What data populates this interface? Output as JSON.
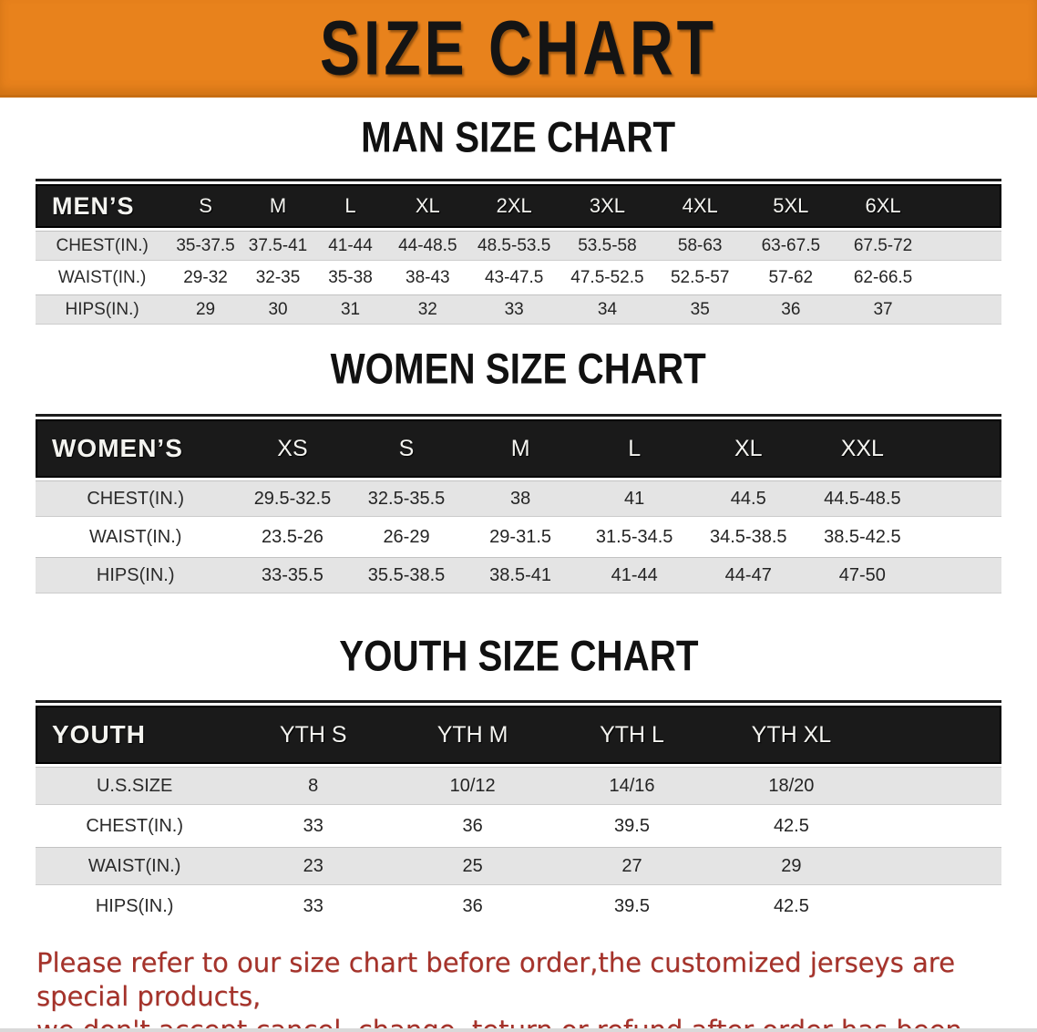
{
  "banner": {
    "title": "SIZE CHART"
  },
  "sections": {
    "men": {
      "title": "MAN SIZE CHART",
      "table": {
        "corner": "MEN’S",
        "columns": [
          "S",
          "M",
          "L",
          "XL",
          "2XL",
          "3XL",
          "4XL",
          "5XL",
          "6XL"
        ],
        "rows": [
          {
            "label": "CHEST(IN.)",
            "values": [
              "35-37.5",
              "37.5-41",
              "41-44",
              "44-48.5",
              "48.5-53.5",
              "53.5-58",
              "58-63",
              "63-67.5",
              "67.5-72"
            ]
          },
          {
            "label": "WAIST(IN.)",
            "values": [
              "29-32",
              "32-35",
              "35-38",
              "38-43",
              "43-47.5",
              "47.5-52.5",
              "52.5-57",
              "57-62",
              "62-66.5"
            ]
          },
          {
            "label": "HIPS(IN.)",
            "values": [
              "29",
              "30",
              "31",
              "32",
              "33",
              "34",
              "35",
              "36",
              "37"
            ]
          }
        ]
      }
    },
    "women": {
      "title": "WOMEN SIZE CHART",
      "table": {
        "corner": "WOMEN’S",
        "columns": [
          "XS",
          "S",
          "M",
          "L",
          "XL",
          "XXL"
        ],
        "rows": [
          {
            "label": "CHEST(IN.)",
            "values": [
              "29.5-32.5",
              "32.5-35.5",
              "38",
              "41",
              "44.5",
              "44.5-48.5"
            ]
          },
          {
            "label": "WAIST(IN.)",
            "values": [
              "23.5-26",
              "26-29",
              "29-31.5",
              "31.5-34.5",
              "34.5-38.5",
              "38.5-42.5"
            ]
          },
          {
            "label": "HIPS(IN.)",
            "values": [
              "33-35.5",
              "35.5-38.5",
              "38.5-41",
              "41-44",
              "44-47",
              "47-50"
            ]
          }
        ]
      }
    },
    "youth": {
      "title": "YOUTH SIZE CHART",
      "table": {
        "corner": "YOUTH",
        "columns": [
          "YTH S",
          "YTH M",
          "YTH L",
          "YTH XL"
        ],
        "rows": [
          {
            "label": "U.S.SIZE",
            "values": [
              "8",
              "10/12",
              "14/16",
              "18/20"
            ]
          },
          {
            "label": "CHEST(IN.)",
            "values": [
              "33",
              "36",
              "39.5",
              "42.5"
            ]
          },
          {
            "label": "WAIST(IN.)",
            "values": [
              "23",
              "25",
              "27",
              "29"
            ]
          },
          {
            "label": "HIPS(IN.)",
            "values": [
              "33",
              "36",
              "39.5",
              "42.5"
            ]
          }
        ]
      }
    }
  },
  "disclaimer": {
    "line1": "Please refer to our size chart before order,the customized jerseys are special products,",
    "line2": "we don't accept cancel, change, teturn or refund after order has been placed!"
  },
  "colors": {
    "banner_orange": "#e8821c",
    "header_bar": "#1a1a1a",
    "stripe_gray": "#e4e4e4",
    "disclaimer_red": "#a5322a"
  }
}
